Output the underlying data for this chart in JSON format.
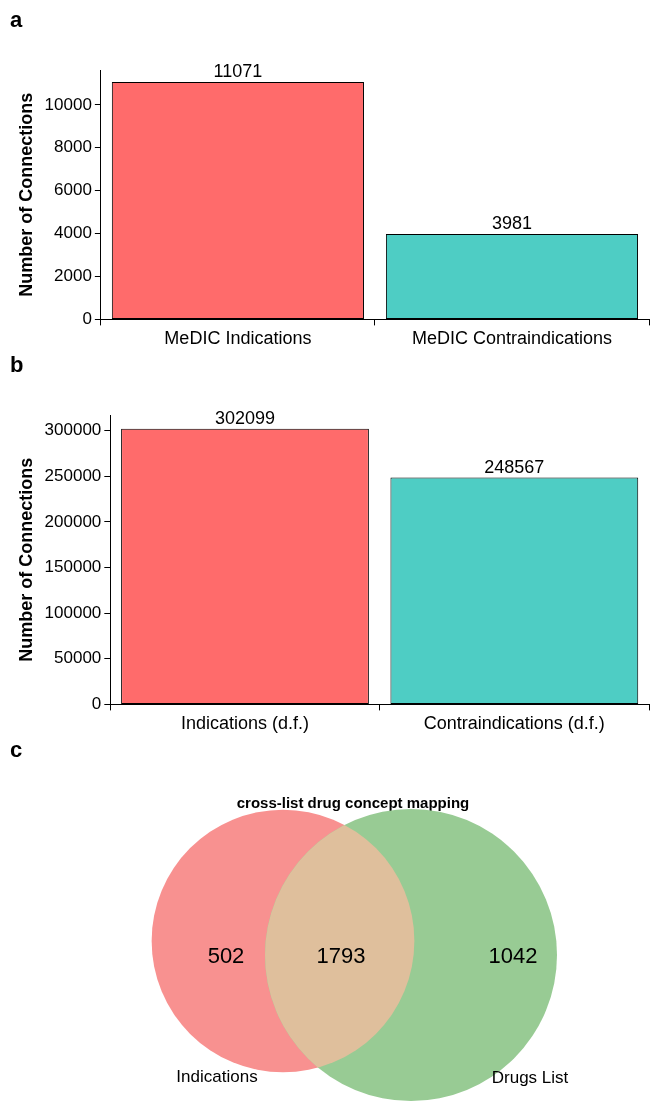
{
  "chart_data": [
    {
      "type": "bar",
      "ylabel": "Number of Connections",
      "annotations": [
        "a"
      ],
      "categories": [
        "MeDIC Indications",
        "MeDIC Contraindications"
      ],
      "values": [
        11071,
        3981
      ],
      "colors": [
        "#ff6b6b",
        "#4ecdc4"
      ],
      "ylim": [
        0,
        11625
      ],
      "yticks": [
        0,
        2000,
        4000,
        6000,
        8000,
        10000
      ],
      "data_labels": true,
      "grid": false
    },
    {
      "type": "bar",
      "ylabel": "Number of Connections",
      "annotations": [
        "b"
      ],
      "categories": [
        "Indications (d.f.)",
        "Contraindications (d.f.)"
      ],
      "values": [
        302099,
        248567
      ],
      "colors": [
        "#ff6b6b",
        "#4ecdc4"
      ],
      "ylim": [
        0,
        317204
      ],
      "yticks": [
        0,
        50000,
        100000,
        150000,
        200000,
        250000,
        300000
      ],
      "data_labels": true,
      "grid": false
    },
    {
      "type": "other",
      "title": "cross-list drug concept mapping",
      "annotations": [
        "c"
      ],
      "categories": [
        "Indications",
        null,
        "Drugs List"
      ],
      "values": [
        502,
        1793,
        1042
      ],
      "colors": [
        "#f89190",
        "#dfbf9c",
        "#98cb94"
      ],
      "data_labels": true
    }
  ]
}
